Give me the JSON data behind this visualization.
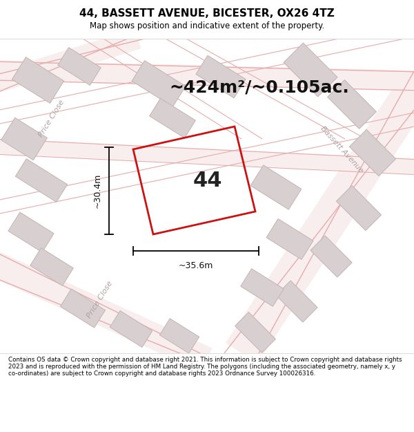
{
  "title": "44, BASSETT AVENUE, BICESTER, OX26 4TZ",
  "subtitle": "Map shows position and indicative extent of the property.",
  "area_text": "~424m²/~0.105ac.",
  "label": "44",
  "dim_width": "~35.6m",
  "dim_height": "~30.4m",
  "footer": "Contains OS data © Crown copyright and database right 2021. This information is subject to Crown copyright and database rights 2023 and is reproduced with the permission of HM Land Registry. The polygons (including the associated geometry, namely x, y co-ordinates) are subject to Crown copyright and database rights 2023 Ordnance Survey 100026316.",
  "map_bg": "#ffffff",
  "road_line_color": "#e8aaaa",
  "road_fill_color": "#f5e8e8",
  "highlight_color": "#cc1111",
  "building_edge": "#c8b8b8",
  "building_fill": "#d8d0d0",
  "street_label_color": "#b0a0a0",
  "title_panel_bg": "#ffffff",
  "footer_panel_bg": "#ffffff",
  "title_fontsize": 11,
  "subtitle_fontsize": 8.5,
  "area_fontsize": 18,
  "label_fontsize": 22,
  "footer_fontsize": 6.3
}
